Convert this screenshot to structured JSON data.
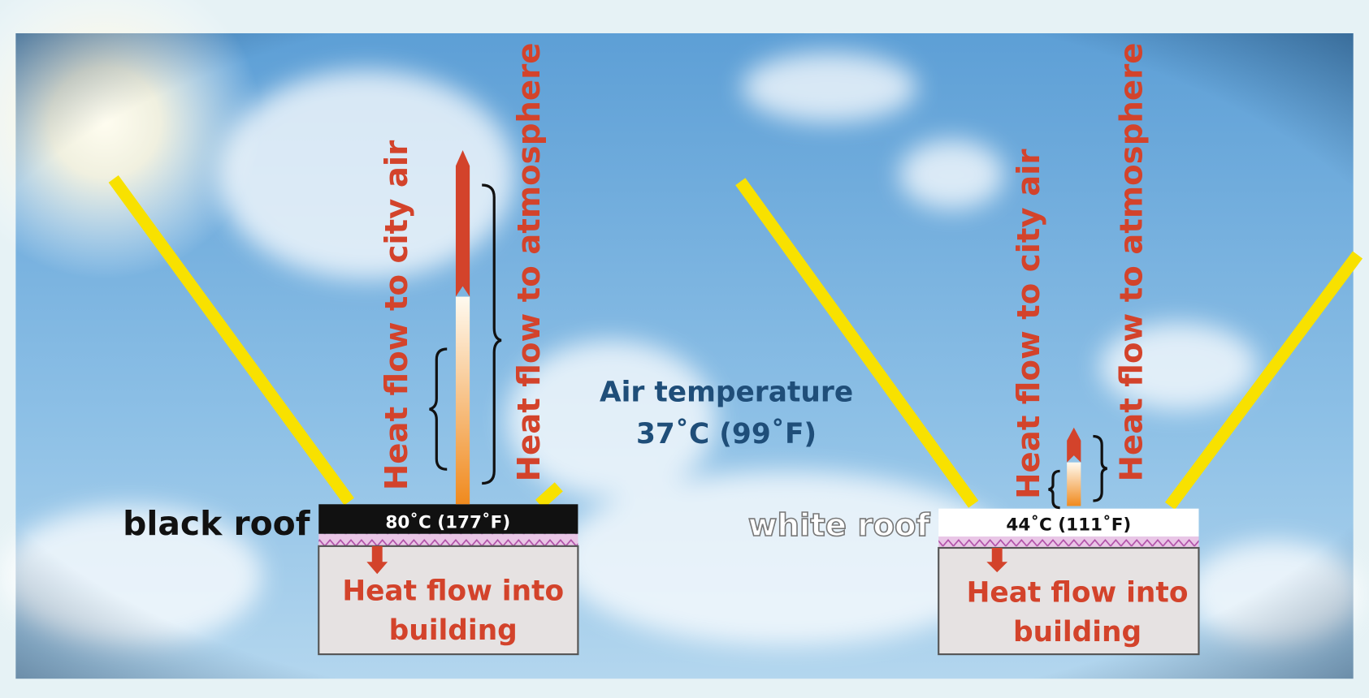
{
  "air_temperature": {
    "label": "Air temperature",
    "value": "37˚C (99˚F)"
  },
  "roofs": [
    {
      "name": "black roof",
      "temperature": "80˚C (177˚F)",
      "city_air": "Heat flow to city air",
      "atmosphere": "Heat flow to atmosphere",
      "building": [
        "Heat flow into",
        "building"
      ]
    },
    {
      "name": "white roof",
      "temperature": "44˚C (111˚F)",
      "city_air": "Heat flow to city air",
      "atmosphere": "Heat flow to atmosphere",
      "building": [
        "Heat flow into",
        "building"
      ]
    }
  ]
}
